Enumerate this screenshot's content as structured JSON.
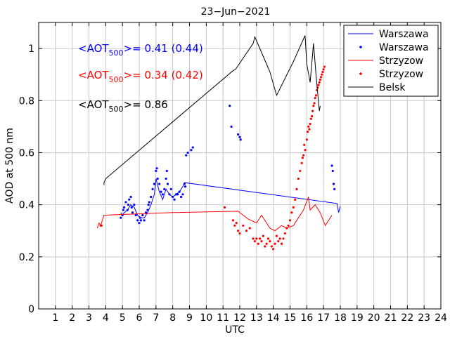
{
  "chart_data": {
    "type": "line",
    "title": "23−Jun−2021",
    "xlabel": "UTC",
    "ylabel": "AOD at 500 nm",
    "xlim": [
      0,
      24
    ],
    "ylim": [
      0,
      1.1
    ],
    "grid": true,
    "legend_position": "top-right",
    "x_ticks": [
      1,
      2,
      3,
      4,
      5,
      6,
      7,
      8,
      9,
      10,
      11,
      12,
      13,
      14,
      15,
      16,
      17,
      18,
      19,
      20,
      21,
      22,
      23,
      24
    ],
    "x_tick_labels": [
      "1",
      "2",
      "3",
      "4",
      "5",
      "6",
      "7",
      "8",
      "9",
      "10",
      "11",
      "12",
      "13",
      "14",
      "15",
      "16",
      "17",
      "18",
      "19",
      "20",
      "21",
      "22",
      "23",
      "24"
    ],
    "y_ticks": [
      0,
      0.2,
      0.4,
      0.6,
      0.8,
      1
    ],
    "y_tick_labels": [
      "0",
      "0.2",
      "0.4",
      "0.6",
      "0.8",
      "1"
    ],
    "annotations": [
      {
        "prefix": "<AOT",
        "sub": "500",
        "suffix": ">= 0.41 (0.44)",
        "color": "#0000ff"
      },
      {
        "prefix": "<AOT",
        "sub": "500",
        "suffix": ">= 0.34 (0.42)",
        "color": "#ff0000"
      },
      {
        "prefix": "<AOT",
        "sub": "500",
        "suffix": ">= 0.86",
        "color": "#000000"
      }
    ],
    "series": [
      {
        "name": "Warszawa",
        "style": "line",
        "color": "#0000ff",
        "x": [
          4.9,
          5.0,
          5.1,
          5.3,
          5.5,
          5.7,
          5.9,
          6.1,
          6.3,
          6.5,
          6.7,
          6.9,
          7.0,
          7.2,
          7.4,
          7.6,
          7.8,
          8.0,
          8.2,
          8.4,
          8.6,
          8.7,
          17.8,
          17.9,
          18.0
        ],
        "y": [
          0.37,
          0.36,
          0.37,
          0.38,
          0.4,
          0.39,
          0.36,
          0.35,
          0.35,
          0.37,
          0.4,
          0.44,
          0.5,
          0.45,
          0.42,
          0.46,
          0.44,
          0.43,
          0.44,
          0.45,
          0.47,
          0.485,
          0.405,
          0.37,
          0.395
        ]
      },
      {
        "name": "Warszawa",
        "style": "markers",
        "color": "#0000ff",
        "x": [
          4.9,
          5.0,
          5.05,
          5.1,
          5.2,
          5.3,
          5.35,
          5.4,
          5.5,
          5.55,
          5.6,
          5.7,
          5.8,
          5.9,
          6.0,
          6.05,
          6.1,
          6.2,
          6.3,
          6.4,
          6.5,
          6.55,
          6.6,
          6.7,
          6.8,
          6.9,
          7.0,
          7.05,
          7.1,
          7.2,
          7.3,
          7.4,
          7.5,
          7.6,
          7.65,
          7.7,
          7.8,
          7.9,
          8.0,
          8.1,
          8.2,
          8.3,
          8.4,
          8.5,
          8.6,
          8.7,
          8.75,
          8.8,
          8.9,
          9.1,
          9.2,
          11.4,
          11.5,
          11.9,
          12.0,
          12.05,
          17.5,
          17.55,
          17.6,
          17.65
        ],
        "y": [
          0.35,
          0.36,
          0.38,
          0.39,
          0.41,
          0.38,
          0.4,
          0.42,
          0.43,
          0.39,
          0.37,
          0.4,
          0.36,
          0.34,
          0.33,
          0.35,
          0.34,
          0.36,
          0.34,
          0.37,
          0.38,
          0.4,
          0.41,
          0.43,
          0.46,
          0.48,
          0.53,
          0.54,
          0.5,
          0.48,
          0.45,
          0.44,
          0.46,
          0.5,
          0.53,
          0.48,
          0.44,
          0.46,
          0.43,
          0.42,
          0.44,
          0.44,
          0.45,
          0.43,
          0.44,
          0.48,
          0.47,
          0.59,
          0.6,
          0.61,
          0.62,
          0.78,
          0.7,
          0.67,
          0.66,
          0.65,
          0.55,
          0.53,
          0.48,
          0.46
        ]
      },
      {
        "name": "Strzyzow",
        "style": "line",
        "color": "#ff0000",
        "x": [
          3.5,
          3.6,
          3.7,
          3.9,
          8.0,
          11.9,
          12.5,
          13.0,
          13.3,
          13.8,
          14.1,
          14.5,
          14.8,
          15.2,
          15.5,
          15.8,
          16.1,
          16.2,
          16.5,
          16.8,
          17.1,
          17.5
        ],
        "y": [
          0.31,
          0.33,
          0.32,
          0.36,
          0.37,
          0.375,
          0.345,
          0.33,
          0.36,
          0.31,
          0.3,
          0.32,
          0.31,
          0.32,
          0.35,
          0.38,
          0.43,
          0.38,
          0.4,
          0.37,
          0.32,
          0.36
        ]
      },
      {
        "name": "Strzyzow",
        "style": "markers",
        "color": "#ff0000",
        "x": [
          3.7,
          3.75,
          11.1,
          11.6,
          11.7,
          11.8,
          11.9,
          12.0,
          12.2,
          12.4,
          12.6,
          12.8,
          12.9,
          13.0,
          13.1,
          13.2,
          13.3,
          13.4,
          13.5,
          13.6,
          13.7,
          13.8,
          13.9,
          14.0,
          14.1,
          14.2,
          14.3,
          14.4,
          14.5,
          14.6,
          14.7,
          14.8,
          14.9,
          15.0,
          15.1,
          15.2,
          15.3,
          15.4,
          15.5,
          15.6,
          15.7,
          15.75,
          15.8,
          15.85,
          15.9,
          16.0,
          16.05,
          16.1,
          16.15,
          16.2,
          16.25,
          16.3,
          16.35,
          16.4,
          16.45,
          16.5,
          16.55,
          16.6,
          16.65,
          16.7,
          16.75,
          16.8,
          16.85,
          16.9,
          16.95,
          17.0,
          17.05
        ],
        "y": [
          0.32,
          0.32,
          0.39,
          0.34,
          0.32,
          0.33,
          0.3,
          0.29,
          0.32,
          0.3,
          0.31,
          0.27,
          0.26,
          0.27,
          0.25,
          0.27,
          0.26,
          0.28,
          0.24,
          0.25,
          0.27,
          0.26,
          0.24,
          0.23,
          0.25,
          0.28,
          0.26,
          0.27,
          0.25,
          0.27,
          0.29,
          0.31,
          0.32,
          0.34,
          0.37,
          0.39,
          0.42,
          0.46,
          0.5,
          0.53,
          0.56,
          0.58,
          0.59,
          0.63,
          0.61,
          0.65,
          0.68,
          0.7,
          0.69,
          0.71,
          0.73,
          0.74,
          0.76,
          0.78,
          0.79,
          0.81,
          0.82,
          0.84,
          0.85,
          0.86,
          0.87,
          0.88,
          0.89,
          0.9,
          0.91,
          0.92,
          0.93
        ]
      },
      {
        "name": "Belsk",
        "style": "line",
        "color": "#000000",
        "x": [
          3.9,
          3.9,
          4.0,
          11.6,
          11.75,
          12.8,
          12.9,
          13.0,
          13.8,
          14.2,
          15.2,
          15.9,
          16.0,
          16.2,
          16.4,
          16.55,
          16.75,
          16.8
        ],
        "y": [
          0.475,
          0.485,
          0.5,
          0.915,
          0.92,
          1.02,
          1.045,
          1.03,
          0.91,
          0.82,
          0.95,
          1.05,
          0.94,
          0.87,
          1.02,
          0.9,
          0.76,
          0.78
        ]
      }
    ]
  }
}
